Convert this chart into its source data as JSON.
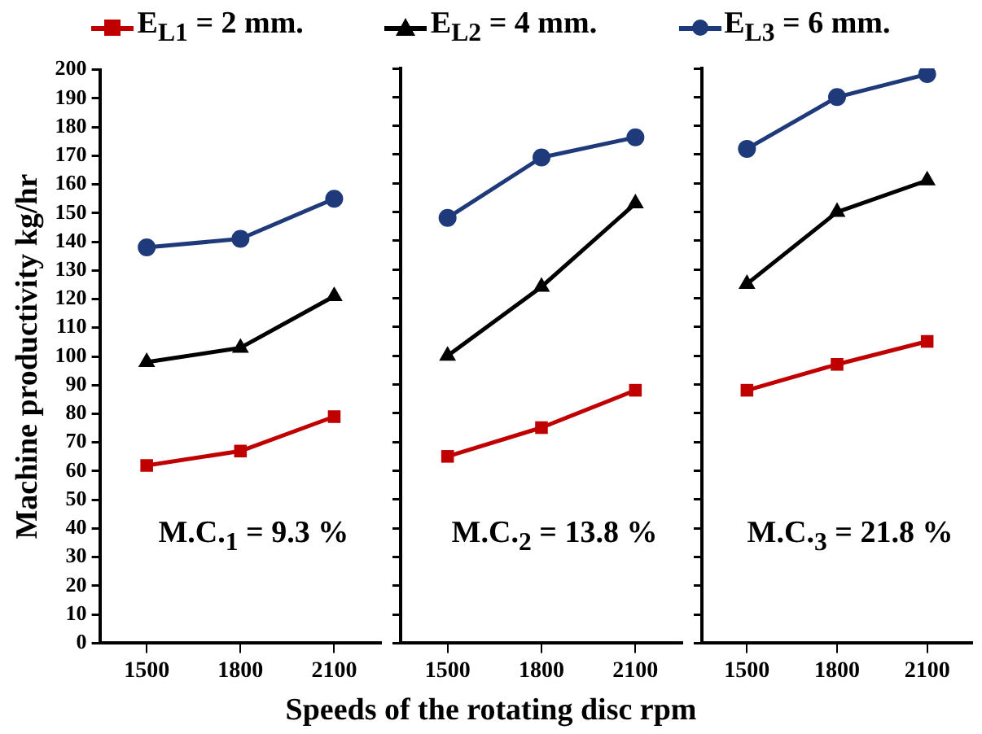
{
  "chart_data": [
    {
      "type": "line",
      "ylabel": "Machine productivity kg/hr",
      "categories": [
        "1500",
        "1800",
        "2100"
      ],
      "ylim": [
        0,
        200
      ],
      "yticks": [
        0,
        10,
        20,
        30,
        40,
        50,
        60,
        70,
        80,
        90,
        100,
        110,
        120,
        130,
        140,
        150,
        160,
        170,
        180,
        190,
        200
      ],
      "grid": false,
      "legend": "top",
      "annotations": [
        "M.C.$_{1}$ = 9.3 %"
      ],
      "series": [
        {
          "name": "E$_{L1}$ = 2 mm.",
          "color": "#c00000",
          "marker": "square",
          "values": [
            62,
            67,
            79
          ]
        },
        {
          "name": "E$_{L2}$ = 4 mm.",
          "color": "#000000",
          "marker": "triangle",
          "values": [
            98,
            103,
            121
          ]
        },
        {
          "name": "E$_{L3}$ = 6 mm.",
          "color": "#1f3a7a",
          "marker": "circle",
          "values": [
            138,
            141,
            155
          ]
        }
      ]
    },
    {
      "type": "line",
      "xlabel": "Speeds of the rotating disc rpm",
      "categories": [
        "1500",
        "1800",
        "2100"
      ],
      "ylim": [
        0,
        200
      ],
      "yticks": [
        0,
        10,
        20,
        30,
        40,
        50,
        60,
        70,
        80,
        90,
        100,
        110,
        120,
        130,
        140,
        150,
        160,
        170,
        180,
        190,
        200
      ],
      "grid": false,
      "tick_labels": "x",
      "annotations": [
        "M.C.$_{2}$ = 13.8 %"
      ],
      "series": [
        {
          "color": "#c00000",
          "marker": "square",
          "values": [
            65,
            75,
            88
          ]
        },
        {
          "color": "#000000",
          "marker": "triangle",
          "values": [
            100,
            124,
            153
          ]
        },
        {
          "color": "#1f3a7a",
          "marker": "circle",
          "values": [
            148,
            169,
            176
          ]
        }
      ]
    },
    {
      "type": "line",
      "categories": [
        "1500",
        "1800",
        "2100"
      ],
      "ylim": [
        0,
        200
      ],
      "yticks": [
        0,
        10,
        20,
        30,
        40,
        50,
        60,
        70,
        80,
        90,
        100,
        110,
        120,
        130,
        140,
        150,
        160,
        170,
        180,
        190,
        200
      ],
      "grid": false,
      "tick_labels": "x",
      "annotations": [
        "M.C.$_{3}$ = 21.8 %"
      ],
      "series": [
        {
          "color": "#c00000",
          "marker": "square",
          "values": [
            88,
            97,
            105
          ]
        },
        {
          "color": "#000000",
          "marker": "triangle",
          "values": [
            125,
            150,
            161
          ]
        },
        {
          "color": "#1f3a7a",
          "marker": "circle",
          "values": [
            172,
            190,
            198
          ]
        }
      ]
    }
  ]
}
